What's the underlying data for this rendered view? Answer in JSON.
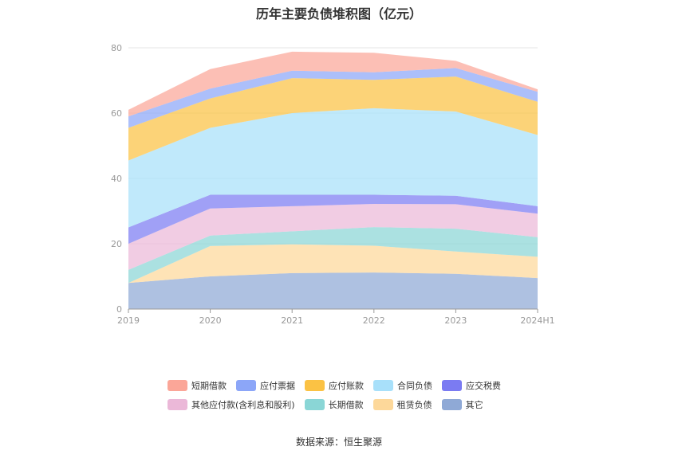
{
  "chart_data": {
    "type": "area",
    "stacked": true,
    "title": "历年主要负债堆积图（亿元）",
    "categories": [
      "2019",
      "2020",
      "2021",
      "2022",
      "2023",
      "2024H1"
    ],
    "ylim": [
      0,
      80
    ],
    "yticks": [
      "0",
      "20",
      "40",
      "60",
      "80"
    ],
    "grid": true,
    "legend_position": "bottom",
    "series": [
      {
        "name": "其它",
        "color": "#8fa9d6",
        "values": [
          8.0,
          10.0,
          11.0,
          11.2,
          10.8,
          9.5
        ]
      },
      {
        "name": "租赁负债",
        "color": "#fdd89a",
        "values": [
          0.0,
          9.3,
          8.8,
          8.2,
          6.8,
          6.5
        ]
      },
      {
        "name": "长期借款",
        "color": "#8ad6d6",
        "values": [
          4.0,
          3.2,
          4.0,
          5.7,
          7.0,
          6.0
        ]
      },
      {
        "name": "其他应付款(含利息和股利)",
        "color": "#ebb8d8",
        "values": [
          8.0,
          8.3,
          7.7,
          7.1,
          7.5,
          7.2
        ]
      },
      {
        "name": "应交税费",
        "color": "#7b7bf2",
        "values": [
          5.0,
          4.2,
          3.5,
          2.8,
          2.6,
          2.3
        ]
      },
      {
        "name": "合同负债",
        "color": "#a8e0fa",
        "values": [
          20.5,
          20.5,
          25.0,
          26.5,
          25.8,
          21.8
        ]
      },
      {
        "name": "应付账款",
        "color": "#fbc244",
        "values": [
          10.0,
          9.0,
          10.7,
          8.7,
          10.7,
          10.2
        ]
      },
      {
        "name": "应付票据",
        "color": "#8ca6f8",
        "values": [
          3.5,
          3.0,
          2.3,
          2.3,
          2.6,
          3.0
        ]
      },
      {
        "name": "短期借款",
        "color": "#fba698",
        "values": [
          2.0,
          6.0,
          5.8,
          6.0,
          2.2,
          0.8
        ]
      }
    ]
  },
  "legend_rows": [
    [
      {
        "name": "短期借款",
        "color": "#fba698"
      },
      {
        "name": "应付票据",
        "color": "#8ca6f8"
      },
      {
        "name": "应付账款",
        "color": "#fbc244"
      },
      {
        "name": "合同负债",
        "color": "#a8e0fa"
      },
      {
        "name": "应交税费",
        "color": "#7b7bf2"
      }
    ],
    [
      {
        "name": "其他应付款(含利息和股利)",
        "color": "#ebb8d8"
      },
      {
        "name": "长期借款",
        "color": "#8ad6d6"
      },
      {
        "name": "租赁负债",
        "color": "#fdd89a"
      },
      {
        "name": "其它",
        "color": "#8fa9d6"
      }
    ]
  ],
  "source": "数据来源：恒生聚源"
}
